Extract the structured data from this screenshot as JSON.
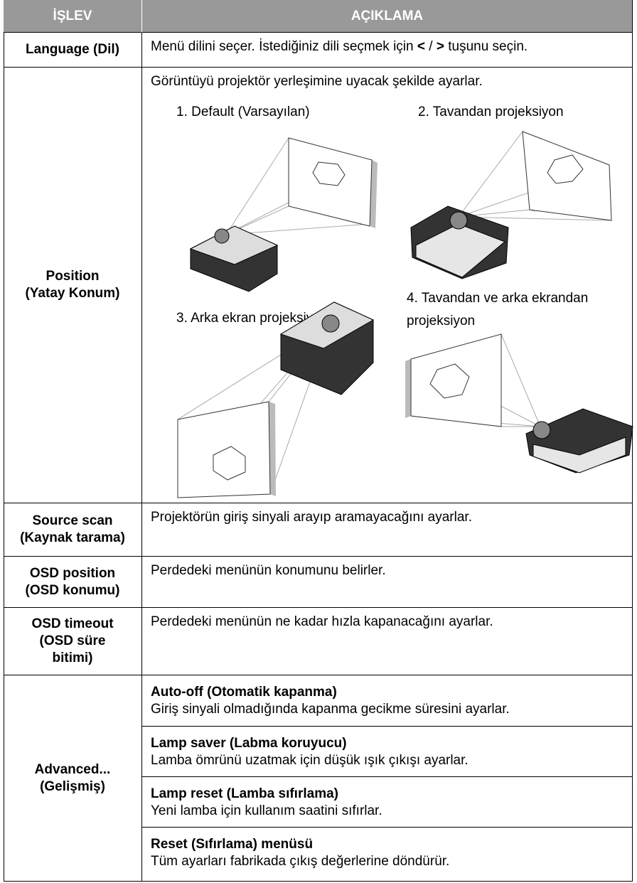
{
  "header": {
    "col1": "İŞLEV",
    "col2": "AÇIKLAMA"
  },
  "rows": [
    {
      "function": [
        "Language (Dil)"
      ],
      "description": [
        "Menü dilini seçer. İstediğiniz dili seçmek için ",
        "<",
        " / ",
        ">",
        " tuşunu seçin."
      ]
    },
    {
      "function": [
        "Position",
        "(Yatay Konum)"
      ],
      "description": "Görüntüyü projektör yerleşimine uyacak şekilde ayarlar.",
      "options": [
        "1. Default (Varsayılan)",
        "2. Tavandan projeksiyon",
        "3. Arka ekran projeksiyonu",
        "4. Tavandan ve arka ekrandan projeksiyon"
      ]
    },
    {
      "function": [
        "Source scan",
        "(Kaynak tarama)"
      ],
      "description": "Projektörün giriş sinyali arayıp aramayacağını ayarlar."
    },
    {
      "function": [
        "OSD position",
        "(OSD konumu)"
      ],
      "description": "Perdedeki menünün konumunu belirler."
    },
    {
      "function": [
        "OSD timeout",
        "(OSD süre",
        "bitimi)"
      ],
      "description": "Perdedeki menünün ne kadar hızla kapanacağını ayarlar."
    },
    {
      "function": [
        "Advanced...",
        "(Gelişmiş)"
      ],
      "items": [
        {
          "title": "Auto-off (Otomatik kapanma)",
          "description": "Giriş sinyali olmadığında kapanma gecikme süresini ayarlar."
        },
        {
          "title": "Lamp saver (Labma koruyucu)",
          "description": "Lamba ömrünü uzatmak için düşük ışık çıkışı ayarlar."
        },
        {
          "title": "Lamp reset (Lamba sıfırlama)",
          "description": "Yeni lamba için kullanım saatini sıfırlar."
        },
        {
          "title": "Reset (Sıfırlama) menüsü",
          "description": "Tüm ayarları fabrikada çıkış değerlerine döndürür."
        }
      ]
    }
  ]
}
